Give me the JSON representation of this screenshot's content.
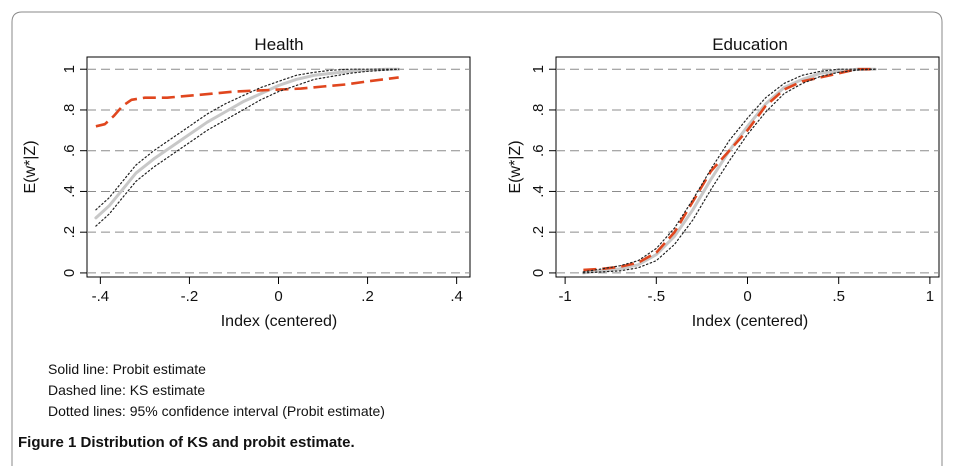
{
  "charts": [
    {
      "type": "line",
      "title": "Health",
      "xlabel": "Index (centered)",
      "ylabel": "E(w*|Z)",
      "xlim": [
        -0.43,
        0.43
      ],
      "ylim": [
        -0.02,
        1.06
      ],
      "xticks": [
        -0.4,
        -0.2,
        0,
        0.2,
        0.4
      ],
      "xtick_labels": [
        "-.4",
        "-.2",
        "0",
        ".2",
        ".4"
      ],
      "yticks": [
        0,
        0.2,
        0.4,
        0.6,
        0.8,
        1
      ],
      "ytick_labels": [
        "0",
        ".2",
        ".4",
        ".6",
        ".8",
        "1"
      ],
      "grid": "horizontal dashed",
      "series": [
        {
          "style": "solid",
          "color": "#c8c8c8",
          "x": [
            -0.41,
            -0.38,
            -0.35,
            -0.32,
            -0.28,
            -0.24,
            -0.2,
            -0.16,
            -0.12,
            -0.08,
            -0.04,
            0,
            0.04,
            0.08,
            0.12,
            0.16,
            0.2,
            0.24,
            0.27
          ],
          "y": [
            0.27,
            0.33,
            0.41,
            0.49,
            0.56,
            0.62,
            0.68,
            0.74,
            0.79,
            0.84,
            0.88,
            0.92,
            0.95,
            0.97,
            0.98,
            0.99,
            0.995,
            1.0,
            1.0
          ]
        },
        {
          "style": "dashed",
          "color": "#e0461e",
          "x": [
            -0.41,
            -0.39,
            -0.37,
            -0.35,
            -0.33,
            -0.3,
            -0.25,
            -0.2,
            -0.15,
            -0.1,
            -0.05,
            0,
            0.05,
            0.1,
            0.15,
            0.2,
            0.27
          ],
          "y": [
            0.72,
            0.73,
            0.77,
            0.82,
            0.85,
            0.86,
            0.86,
            0.87,
            0.88,
            0.89,
            0.895,
            0.9,
            0.905,
            0.915,
            0.925,
            0.94,
            0.96
          ]
        },
        {
          "style": "dotted",
          "color": "#222222",
          "x": [
            -0.41,
            -0.38,
            -0.35,
            -0.32,
            -0.28,
            -0.24,
            -0.2,
            -0.16,
            -0.12,
            -0.08,
            -0.04,
            0,
            0.04,
            0.08,
            0.12,
            0.16,
            0.2,
            0.24,
            0.27
          ],
          "y": [
            0.31,
            0.37,
            0.45,
            0.53,
            0.6,
            0.66,
            0.72,
            0.78,
            0.83,
            0.87,
            0.91,
            0.94,
            0.97,
            0.985,
            0.995,
            1.0,
            1.0,
            1.0,
            1.0
          ]
        },
        {
          "style": "dotted",
          "color": "#222222",
          "x": [
            -0.41,
            -0.38,
            -0.35,
            -0.32,
            -0.28,
            -0.24,
            -0.2,
            -0.16,
            -0.12,
            -0.08,
            -0.04,
            0,
            0.04,
            0.08,
            0.12,
            0.16,
            0.2,
            0.24,
            0.27
          ],
          "y": [
            0.23,
            0.29,
            0.37,
            0.45,
            0.52,
            0.58,
            0.64,
            0.7,
            0.75,
            0.8,
            0.85,
            0.89,
            0.92,
            0.95,
            0.965,
            0.98,
            0.99,
            0.995,
            1.0
          ]
        }
      ]
    },
    {
      "type": "line",
      "title": "Education",
      "xlabel": "Index (centered)",
      "ylabel": "E(w*|Z)",
      "xlim": [
        -1.05,
        1.05
      ],
      "ylim": [
        -0.02,
        1.06
      ],
      "xticks": [
        -1,
        -0.5,
        0,
        0.5,
        1
      ],
      "xtick_labels": [
        "-1",
        "-.5",
        "0",
        ".5",
        "1"
      ],
      "yticks": [
        0,
        0.2,
        0.4,
        0.6,
        0.8,
        1
      ],
      "ytick_labels": [
        "0",
        ".2",
        ".4",
        ".6",
        ".8",
        "1"
      ],
      "grid": "horizontal dashed",
      "series": [
        {
          "style": "solid",
          "color": "#c8c8c8",
          "x": [
            -0.9,
            -0.8,
            -0.7,
            -0.6,
            -0.5,
            -0.4,
            -0.3,
            -0.2,
            -0.1,
            0,
            0.1,
            0.2,
            0.3,
            0.4,
            0.5,
            0.6,
            0.7
          ],
          "y": [
            0.0,
            0.01,
            0.02,
            0.04,
            0.09,
            0.18,
            0.31,
            0.46,
            0.6,
            0.72,
            0.83,
            0.91,
            0.95,
            0.98,
            0.99,
            1.0,
            1.0
          ]
        },
        {
          "style": "dashed",
          "color": "#e0461e",
          "x": [
            -0.9,
            -0.8,
            -0.7,
            -0.6,
            -0.5,
            -0.4,
            -0.3,
            -0.2,
            -0.1,
            0,
            0.1,
            0.2,
            0.3,
            0.4,
            0.5,
            0.6,
            0.7
          ],
          "y": [
            0.015,
            0.02,
            0.03,
            0.05,
            0.1,
            0.2,
            0.35,
            0.5,
            0.6,
            0.7,
            0.82,
            0.9,
            0.94,
            0.96,
            0.98,
            1.0,
            1.0
          ]
        },
        {
          "style": "dotted",
          "color": "#222222",
          "x": [
            -0.9,
            -0.8,
            -0.7,
            -0.6,
            -0.5,
            -0.4,
            -0.3,
            -0.2,
            -0.1,
            0,
            0.1,
            0.2,
            0.3,
            0.4,
            0.5,
            0.6,
            0.7
          ],
          "y": [
            0.005,
            0.02,
            0.035,
            0.06,
            0.12,
            0.22,
            0.36,
            0.51,
            0.65,
            0.76,
            0.86,
            0.93,
            0.97,
            0.99,
            1.0,
            1.0,
            1.0
          ]
        },
        {
          "style": "dotted",
          "color": "#222222",
          "x": [
            -0.9,
            -0.8,
            -0.7,
            -0.6,
            -0.5,
            -0.4,
            -0.3,
            -0.2,
            -0.1,
            0,
            0.1,
            0.2,
            0.3,
            0.4,
            0.5,
            0.6,
            0.7
          ],
          "y": [
            0.0,
            0.005,
            0.01,
            0.025,
            0.06,
            0.14,
            0.26,
            0.41,
            0.55,
            0.68,
            0.79,
            0.88,
            0.93,
            0.965,
            0.985,
            0.995,
            1.0
          ]
        }
      ]
    }
  ],
  "notes": {
    "solid": "Solid line: Probit estimate",
    "dashed": "Dashed line: KS estimate",
    "dotted": "Dotted lines: 95% confidence interval (Probit estimate)"
  },
  "caption": "Figure 1 Distribution of KS and probit estimate."
}
